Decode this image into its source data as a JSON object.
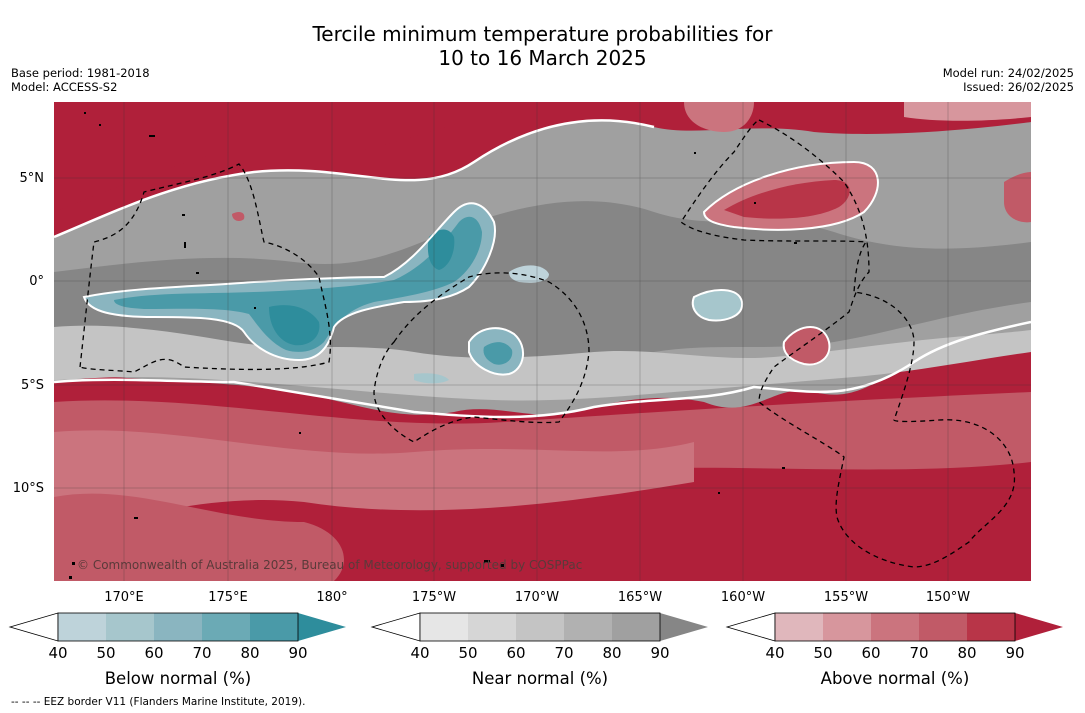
{
  "title_line1": "Tercile minimum temperature probabilities for",
  "title_line2": "10 to 16 March 2025",
  "meta_left": {
    "base_period": "Base period: 1981-2018",
    "model": "Model: ACCESS-S2"
  },
  "meta_right": {
    "model_run": "Model run: 24/02/2025",
    "issued": "Issued: 26/02/2025"
  },
  "lat_labels": [
    "5°N",
    "0°",
    "5°S",
    "10°S"
  ],
  "lon_labels": [
    "170°E",
    "175°E",
    "180°",
    "175°W",
    "170°W",
    "165°W",
    "160°W",
    "155°W",
    "150°W"
  ],
  "copyright": "© Commonwealth of Australia 2025, Bureau of Meteorology, supported by COSPPac",
  "colorbars": [
    {
      "title": "Below normal (%)",
      "ticks": [
        "40",
        "50",
        "60",
        "70",
        "80",
        "90"
      ],
      "colors": [
        "#bed3da",
        "#a6c6cc",
        "#8ab5c0",
        "#6baab5",
        "#4a9aa8",
        "#2e8d9c"
      ]
    },
    {
      "title": "Near normal (%)",
      "ticks": [
        "40",
        "50",
        "60",
        "70",
        "80",
        "90"
      ],
      "colors": [
        "#e6e6e6",
        "#d6d6d6",
        "#c4c4c4",
        "#b1b1b1",
        "#a0a0a0",
        "#868686"
      ]
    },
    {
      "title": "Above normal (%)",
      "ticks": [
        "40",
        "50",
        "60",
        "70",
        "80",
        "90"
      ],
      "colors": [
        "#e0b7bc",
        "#d7969d",
        "#cb747e",
        "#c15a67",
        "#b83548",
        "#b0203a"
      ]
    }
  ],
  "footer": "--  --  -- EEZ border V11 (Flanders Marine Institute, 2019)."
}
